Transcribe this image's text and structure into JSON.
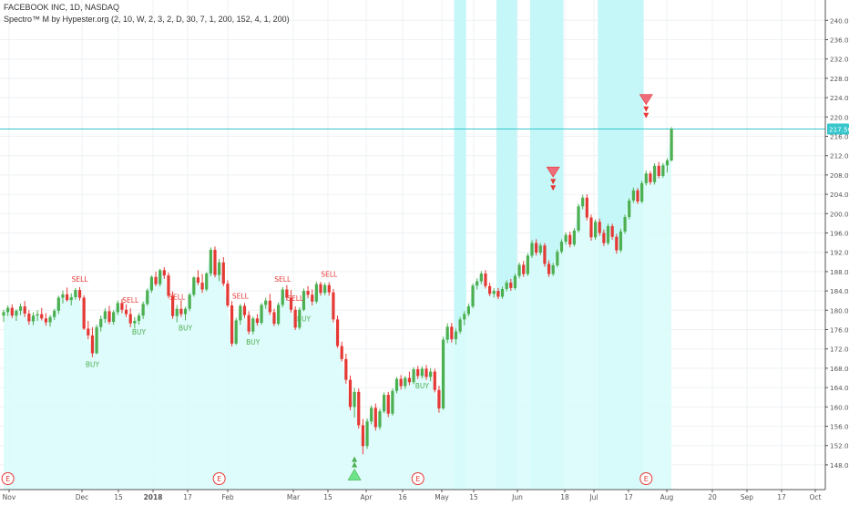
{
  "legend": {
    "symbol_line": "FACEBOOK INC, 1D, NASDAQ",
    "indicator_line": "Spectro™ M by Hypester.org (2, 10, W, 2, 3, 2, D, 30, 7, 1, 200, 152, 4, 1, 200)"
  },
  "colors": {
    "up": "#4caf50",
    "down": "#e53935",
    "fill": "#d9fbfb",
    "band": "#c5f7f8",
    "signal_arrow": "#ef6c7a",
    "buy_arrow": "#6ee48a",
    "price_line": "#36c6cc",
    "grid": "#eef0f3",
    "axis_text": "#555555"
  },
  "chart_data": {
    "type": "candlestick",
    "ylim": [
      146,
      242
    ],
    "y_ticks": [
      "148.00",
      "152.00",
      "156.00",
      "160.00",
      "164.00",
      "168.00",
      "172.00",
      "176.00",
      "180.00",
      "184.00",
      "188.00",
      "192.00",
      "196.00",
      "200.00",
      "204.00",
      "208.00",
      "212.00",
      "216.00",
      "220.00",
      "224.00",
      "228.00",
      "232.00",
      "236.00",
      "240.00"
    ],
    "x_ticks": [
      "Nov",
      "Dec",
      "15",
      "2018",
      "17",
      "Feb",
      "Mar",
      "15",
      "Apr",
      "16",
      "May",
      "15",
      "Jun",
      "18",
      "Jul",
      "17",
      "Aug",
      "20",
      "Sep",
      "17",
      "Oct"
    ],
    "last_price": "217.50",
    "candles": [
      [
        178.9,
        180.1,
        177.6,
        179.6
      ],
      [
        179.6,
        181.0,
        178.8,
        180.5
      ],
      [
        180.5,
        181.2,
        178.4,
        178.9
      ],
      [
        178.9,
        180.2,
        177.8,
        179.9
      ],
      [
        179.9,
        181.4,
        179.0,
        180.8
      ],
      [
        180.8,
        181.9,
        178.6,
        179.3
      ],
      [
        179.3,
        180.0,
        177.0,
        177.7
      ],
      [
        177.7,
        179.6,
        176.9,
        178.9
      ],
      [
        178.9,
        180.0,
        177.8,
        179.2
      ],
      [
        179.2,
        180.5,
        177.9,
        178.3
      ],
      [
        178.3,
        179.4,
        176.8,
        177.5
      ],
      [
        177.5,
        179.0,
        176.6,
        178.6
      ],
      [
        178.6,
        180.3,
        178.0,
        179.9
      ],
      [
        179.9,
        183.0,
        179.2,
        182.6
      ],
      [
        182.6,
        184.1,
        181.4,
        183.3
      ],
      [
        183.3,
        184.7,
        181.8,
        182.1
      ],
      [
        182.1,
        183.5,
        181.0,
        182.7
      ],
      [
        182.7,
        184.6,
        182.2,
        184.2
      ],
      [
        184.2,
        184.8,
        182.0,
        182.6
      ],
      [
        182.6,
        183.1,
        175.9,
        176.2
      ],
      [
        176.2,
        177.8,
        174.0,
        174.8
      ],
      [
        174.8,
        176.5,
        170.3,
        171.1
      ],
      [
        171.1,
        177.0,
        170.9,
        176.5
      ],
      [
        176.5,
        178.9,
        175.6,
        178.2
      ],
      [
        178.2,
        180.4,
        177.4,
        179.8
      ],
      [
        179.8,
        180.9,
        177.1,
        177.6
      ],
      [
        177.6,
        180.0,
        177.0,
        179.6
      ],
      [
        179.6,
        182.0,
        179.0,
        181.5
      ],
      [
        181.5,
        182.3,
        179.4,
        180.1
      ],
      [
        180.1,
        181.2,
        178.6,
        179.2
      ],
      [
        179.2,
        180.4,
        176.5,
        177.3
      ],
      [
        177.3,
        178.6,
        176.2,
        177.8
      ],
      [
        177.8,
        179.4,
        177.0,
        178.9
      ],
      [
        178.9,
        181.8,
        178.2,
        181.3
      ],
      [
        181.3,
        184.5,
        180.9,
        184.1
      ],
      [
        184.1,
        187.2,
        183.6,
        186.9
      ],
      [
        186.9,
        188.0,
        185.0,
        185.4
      ],
      [
        185.4,
        188.6,
        184.9,
        188.3
      ],
      [
        188.3,
        188.9,
        186.5,
        187.2
      ],
      [
        187.2,
        187.8,
        182.5,
        183.0
      ],
      [
        183.0,
        183.9,
        178.2,
        178.8
      ],
      [
        178.8,
        181.1,
        177.5,
        180.3
      ],
      [
        180.3,
        182.1,
        178.6,
        179.2
      ],
      [
        179.2,
        180.7,
        177.9,
        180.3
      ],
      [
        180.3,
        183.6,
        179.8,
        183.2
      ],
      [
        183.2,
        187.0,
        182.8,
        186.8
      ],
      [
        186.8,
        188.3,
        185.2,
        185.7
      ],
      [
        185.7,
        187.5,
        183.6,
        184.3
      ],
      [
        184.3,
        187.9,
        183.9,
        187.6
      ],
      [
        187.6,
        193.0,
        187.0,
        192.5
      ],
      [
        192.5,
        193.2,
        186.8,
        187.3
      ],
      [
        187.3,
        190.6,
        186.0,
        189.9
      ],
      [
        189.9,
        191.0,
        185.0,
        185.5
      ],
      [
        185.5,
        186.2,
        180.6,
        181.0
      ],
      [
        181.0,
        181.9,
        172.5,
        173.1
      ],
      [
        173.1,
        178.4,
        172.8,
        177.9
      ],
      [
        177.9,
        181.3,
        177.0,
        180.9
      ],
      [
        180.9,
        181.5,
        178.4,
        179.0
      ],
      [
        179.0,
        179.8,
        175.0,
        175.6
      ],
      [
        175.6,
        178.7,
        175.0,
        178.3
      ],
      [
        178.3,
        179.2,
        176.8,
        177.4
      ],
      [
        177.4,
        181.5,
        177.0,
        181.1
      ],
      [
        181.1,
        182.6,
        180.3,
        182.0
      ],
      [
        182.0,
        183.4,
        179.0,
        179.6
      ],
      [
        179.6,
        180.3,
        176.7,
        177.2
      ],
      [
        177.2,
        181.6,
        176.8,
        181.1
      ],
      [
        181.1,
        184.8,
        180.6,
        184.3
      ],
      [
        184.3,
        185.2,
        182.0,
        182.6
      ],
      [
        182.6,
        184.2,
        179.5,
        180.1
      ],
      [
        180.1,
        180.8,
        175.9,
        176.4
      ],
      [
        176.4,
        180.6,
        176.0,
        180.1
      ],
      [
        180.1,
        184.5,
        179.8,
        184.0
      ],
      [
        184.0,
        185.0,
        182.5,
        183.2
      ],
      [
        183.2,
        184.3,
        181.0,
        181.8
      ],
      [
        181.8,
        185.9,
        181.4,
        185.4
      ],
      [
        185.4,
        185.9,
        183.0,
        183.6
      ],
      [
        183.6,
        185.7,
        183.1,
        185.2
      ],
      [
        185.2,
        185.8,
        183.0,
        183.7
      ],
      [
        183.7,
        184.4,
        177.5,
        178.1
      ],
      [
        178.1,
        178.9,
        172.2,
        172.6
      ],
      [
        172.6,
        173.5,
        169.4,
        169.9
      ],
      [
        169.9,
        171.0,
        164.8,
        165.6
      ],
      [
        165.6,
        166.5,
        159.3,
        160.0
      ],
      [
        160.0,
        163.9,
        157.8,
        163.1
      ],
      [
        163.1,
        163.8,
        155.5,
        156.2
      ],
      [
        156.2,
        157.5,
        150.2,
        151.9
      ],
      [
        151.9,
        157.6,
        151.3,
        157.0
      ],
      [
        157.0,
        160.3,
        156.4,
        159.8
      ],
      [
        159.8,
        160.7,
        155.1,
        155.8
      ],
      [
        155.8,
        159.6,
        155.3,
        159.1
      ],
      [
        159.1,
        163.0,
        158.7,
        162.5
      ],
      [
        162.5,
        163.1,
        157.9,
        158.6
      ],
      [
        158.6,
        163.8,
        158.2,
        163.3
      ],
      [
        163.3,
        166.2,
        162.8,
        165.8
      ],
      [
        165.8,
        166.6,
        163.6,
        164.3
      ],
      [
        164.3,
        166.4,
        163.7,
        166.0
      ],
      [
        166.0,
        167.3,
        164.5,
        165.1
      ],
      [
        165.1,
        168.2,
        164.7,
        167.8
      ],
      [
        167.8,
        168.5,
        165.8,
        166.4
      ],
      [
        166.4,
        168.4,
        165.9,
        167.9
      ],
      [
        167.9,
        168.7,
        165.6,
        166.2
      ],
      [
        166.2,
        168.0,
        165.3,
        167.3
      ],
      [
        167.3,
        167.9,
        163.0,
        163.5
      ],
      [
        163.5,
        164.4,
        158.8,
        159.7
      ],
      [
        159.7,
        174.5,
        159.4,
        173.9
      ],
      [
        173.9,
        177.3,
        173.2,
        176.6
      ],
      [
        176.6,
        177.4,
        173.3,
        174.0
      ],
      [
        174.0,
        176.2,
        172.9,
        175.6
      ],
      [
        175.6,
        178.6,
        175.1,
        178.1
      ],
      [
        178.1,
        179.8,
        176.9,
        179.2
      ],
      [
        179.2,
        181.4,
        178.7,
        180.8
      ],
      [
        180.8,
        185.5,
        180.4,
        185.1
      ],
      [
        185.1,
        186.6,
        184.3,
        186.0
      ],
      [
        186.0,
        188.1,
        185.4,
        187.6
      ],
      [
        187.6,
        188.3,
        184.5,
        185.0
      ],
      [
        185.0,
        185.7,
        182.9,
        183.4
      ],
      [
        183.4,
        184.6,
        182.6,
        184.0
      ],
      [
        184.0,
        184.6,
        182.3,
        182.8
      ],
      [
        182.8,
        184.9,
        182.4,
        184.4
      ],
      [
        184.4,
        186.2,
        183.9,
        185.7
      ],
      [
        185.7,
        186.5,
        184.0,
        184.6
      ],
      [
        184.6,
        187.6,
        184.2,
        187.1
      ],
      [
        187.1,
        189.9,
        186.6,
        189.4
      ],
      [
        189.4,
        190.2,
        186.9,
        187.5
      ],
      [
        187.5,
        191.8,
        187.1,
        191.3
      ],
      [
        191.3,
        194.5,
        190.8,
        193.9
      ],
      [
        193.9,
        194.7,
        191.3,
        191.9
      ],
      [
        191.9,
        193.9,
        191.4,
        193.4
      ],
      [
        193.4,
        193.9,
        189.0,
        189.6
      ],
      [
        189.6,
        190.3,
        186.9,
        187.5
      ],
      [
        187.5,
        189.8,
        187.1,
        189.3
      ],
      [
        189.3,
        192.6,
        188.9,
        192.1
      ],
      [
        192.1,
        194.7,
        191.7,
        194.2
      ],
      [
        194.2,
        196.1,
        193.6,
        195.6
      ],
      [
        195.6,
        196.3,
        193.0,
        193.6
      ],
      [
        193.6,
        197.0,
        193.2,
        196.5
      ],
      [
        196.5,
        202.0,
        196.1,
        201.5
      ],
      [
        201.5,
        203.9,
        200.9,
        203.3
      ],
      [
        203.3,
        204.0,
        198.6,
        199.2
      ],
      [
        199.2,
        199.8,
        194.4,
        195.1
      ],
      [
        195.1,
        198.8,
        194.6,
        198.3
      ],
      [
        198.3,
        199.0,
        195.4,
        196.0
      ],
      [
        196.0,
        196.7,
        193.3,
        193.9
      ],
      [
        193.9,
        197.9,
        193.5,
        197.4
      ],
      [
        197.4,
        197.9,
        194.6,
        195.2
      ],
      [
        195.2,
        195.8,
        191.7,
        192.4
      ],
      [
        192.4,
        196.9,
        192.0,
        196.3
      ],
      [
        196.3,
        199.8,
        195.8,
        199.3
      ],
      [
        199.3,
        203.2,
        198.8,
        202.7
      ],
      [
        202.7,
        205.4,
        202.2,
        204.8
      ],
      [
        204.8,
        205.3,
        202.0,
        202.5
      ],
      [
        202.5,
        206.8,
        202.1,
        206.3
      ],
      [
        206.3,
        208.9,
        205.8,
        208.3
      ],
      [
        208.3,
        208.8,
        206.0,
        206.5
      ],
      [
        206.5,
        210.4,
        206.0,
        209.9
      ],
      [
        209.9,
        210.7,
        207.3,
        207.8
      ],
      [
        207.8,
        210.5,
        207.4,
        210.0
      ],
      [
        210.0,
        211.4,
        208.5,
        211.0
      ],
      [
        211.0,
        217.9,
        210.8,
        217.5
      ]
    ],
    "signals": [
      {
        "i": 18,
        "label": "SELL"
      },
      {
        "i": 21,
        "label": "BUY"
      },
      {
        "i": 30,
        "label": "SELL"
      },
      {
        "i": 32,
        "label": "BUY"
      },
      {
        "i": 41,
        "label": "SELL"
      },
      {
        "i": 43,
        "label": "BUY"
      },
      {
        "i": 56,
        "label": "SELL"
      },
      {
        "i": 59,
        "label": "BUY"
      },
      {
        "i": 66,
        "label": "SELL"
      },
      {
        "i": 69,
        "label": "SELL"
      },
      {
        "i": 71,
        "label": "BUY"
      },
      {
        "i": 77,
        "label": "SELL"
      },
      {
        "i": 99,
        "label": "BUY"
      }
    ],
    "earnings": [
      {
        "i": 1,
        "label": "E"
      },
      {
        "i": 51,
        "label": "E"
      },
      {
        "i": 98,
        "label": "E"
      },
      {
        "i": 152,
        "label": "E"
      }
    ],
    "top_markers": [
      {
        "i": 130,
        "price": 207.0
      },
      {
        "i": 152,
        "price": 222.0
      }
    ],
    "bottom_marker": {
      "i": 83,
      "price": 149.0
    },
    "highlight_ranges": [
      [
        107,
        109
      ],
      [
        117,
        121
      ],
      [
        125,
        132
      ],
      [
        141,
        151
      ]
    ]
  }
}
